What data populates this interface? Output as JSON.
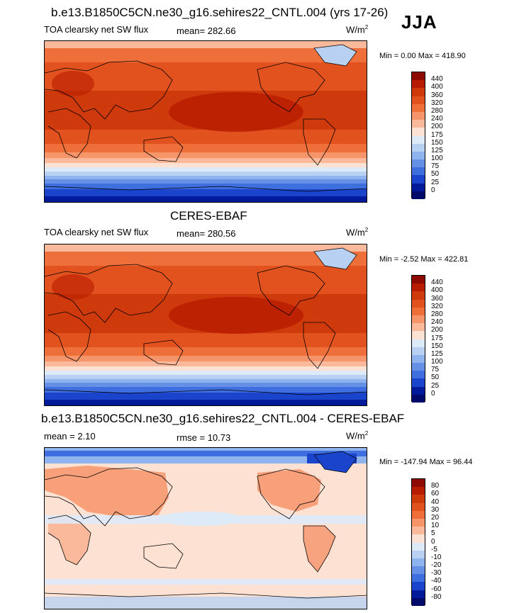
{
  "season": "JJA",
  "panels": [
    {
      "title": "b.e13.B1850C5CN.ne30_g16.sehires22_CNTL.004 (yrs 17-26)",
      "left_label": "TOA clearsky net SW flux",
      "center_label": "mean= 282.66",
      "units_base": "W/m",
      "units_sup": "2",
      "minmax": "Min =   0.00 Max = 418.90",
      "colorbar_labels": [
        "440",
        "400",
        "360",
        "320",
        "280",
        "240",
        "200",
        "175",
        "150",
        "125",
        "100",
        "75",
        "50",
        "25",
        "0"
      ],
      "colors": [
        "#8c0a00",
        "#b71c00",
        "#cf3a0c",
        "#e2521e",
        "#ee6f3a",
        "#f6946a",
        "#fbb99c",
        "#fde2d3",
        "#ddeaf8",
        "#b8d1f2",
        "#8fb3ec",
        "#6690e6",
        "#3f6fdf",
        "#1a44cc",
        "#001a99",
        "#000a6b"
      ]
    },
    {
      "title": "CERES-EBAF",
      "left_label": "TOA clearsky net SW flux",
      "center_label": "mean= 280.56",
      "units_base": "W/m",
      "units_sup": "2",
      "minmax": "Min =  -2.52 Max = 422.81",
      "colorbar_labels": [
        "440",
        "400",
        "360",
        "320",
        "280",
        "240",
        "200",
        "175",
        "150",
        "125",
        "100",
        "75",
        "50",
        "25",
        "0"
      ],
      "colors": [
        "#8c0a00",
        "#b71c00",
        "#cf3a0c",
        "#e2521e",
        "#ee6f3a",
        "#f6946a",
        "#fbb99c",
        "#fde2d3",
        "#ddeaf8",
        "#b8d1f2",
        "#8fb3ec",
        "#6690e6",
        "#3f6fdf",
        "#1a44cc",
        "#001a99",
        "#000a6b"
      ]
    },
    {
      "title": "b.e13.B1850C5CN.ne30_g16.sehires22_CNTL.004 - CERES-EBAF",
      "left_label": "mean =   2.10",
      "center_label": "rmse =  10.73",
      "units_base": "W/m",
      "units_sup": "2",
      "minmax": "Min = -147.94 Max =  96.44",
      "colorbar_labels": [
        "80",
        "60",
        "40",
        "30",
        "20",
        "10",
        "5",
        "0",
        "-5",
        "-10",
        "-20",
        "-30",
        "-40",
        "-60",
        "-80"
      ],
      "colors": [
        "#8c0a00",
        "#b71c00",
        "#cf3a0c",
        "#e2521e",
        "#ee6f3a",
        "#f6946a",
        "#fbb99c",
        "#fde2d3",
        "#ddeaf8",
        "#b8d1f2",
        "#8fb3ec",
        "#6690e6",
        "#3f6fdf",
        "#1a44cc",
        "#001a99",
        "#000a6b"
      ]
    }
  ]
}
